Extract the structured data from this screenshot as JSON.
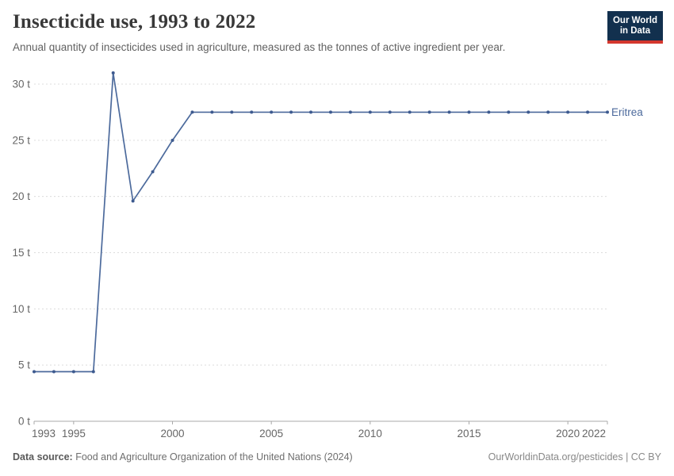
{
  "header": {
    "title": "Insecticide use, 1993 to 2022",
    "subtitle": "Annual quantity of insecticides used in agriculture, measured as the tonnes of active ingredient per year.",
    "logo": {
      "line1": "Our World",
      "line2": "in Data",
      "bg_color": "#12304e",
      "accent_color": "#d4372e"
    }
  },
  "chart_data": {
    "type": "line",
    "title": "Insecticide use, 1993 to 2022",
    "entity": "Eritrea",
    "unit": "tonnes",
    "x": [
      1993,
      1994,
      1995,
      1996,
      1997,
      1998,
      1999,
      2000,
      2001,
      2002,
      2003,
      2004,
      2005,
      2006,
      2007,
      2008,
      2009,
      2010,
      2011,
      2012,
      2013,
      2014,
      2015,
      2016,
      2017,
      2018,
      2019,
      2020,
      2021,
      2022
    ],
    "values": [
      4.41,
      4.41,
      4.41,
      4.41,
      31,
      19.6,
      22.2,
      25,
      27.5,
      27.5,
      27.5,
      27.5,
      27.5,
      27.5,
      27.5,
      27.5,
      27.5,
      27.5,
      27.5,
      27.5,
      27.5,
      27.5,
      27.5,
      27.5,
      27.5,
      27.5,
      27.5,
      27.5,
      27.5,
      27.5
    ],
    "xlim": [
      1993,
      2022
    ],
    "ylim": [
      0,
      31
    ],
    "yticks": [
      0,
      5,
      10,
      15,
      20,
      25,
      30
    ],
    "ytick_suffix": " t",
    "xticks": [
      1993,
      1995,
      2000,
      2005,
      2010,
      2015,
      2020,
      2022
    ],
    "xlabel": "",
    "ylabel": "",
    "grid": "horizontal-dashed",
    "legend_position": "end-of-line-label",
    "line_color": "#4c6a9c",
    "marker_color": "#3d5a8f",
    "gridline_color": "#dcdcdc",
    "axis_color": "#a8a8a8",
    "tick_label_color": "#666666"
  },
  "footer": {
    "source_label": "Data source:",
    "source_text": " Food and Agriculture Organization of the United Nations (2024)",
    "credit": "OurWorldinData.org/pesticides | CC BY"
  }
}
